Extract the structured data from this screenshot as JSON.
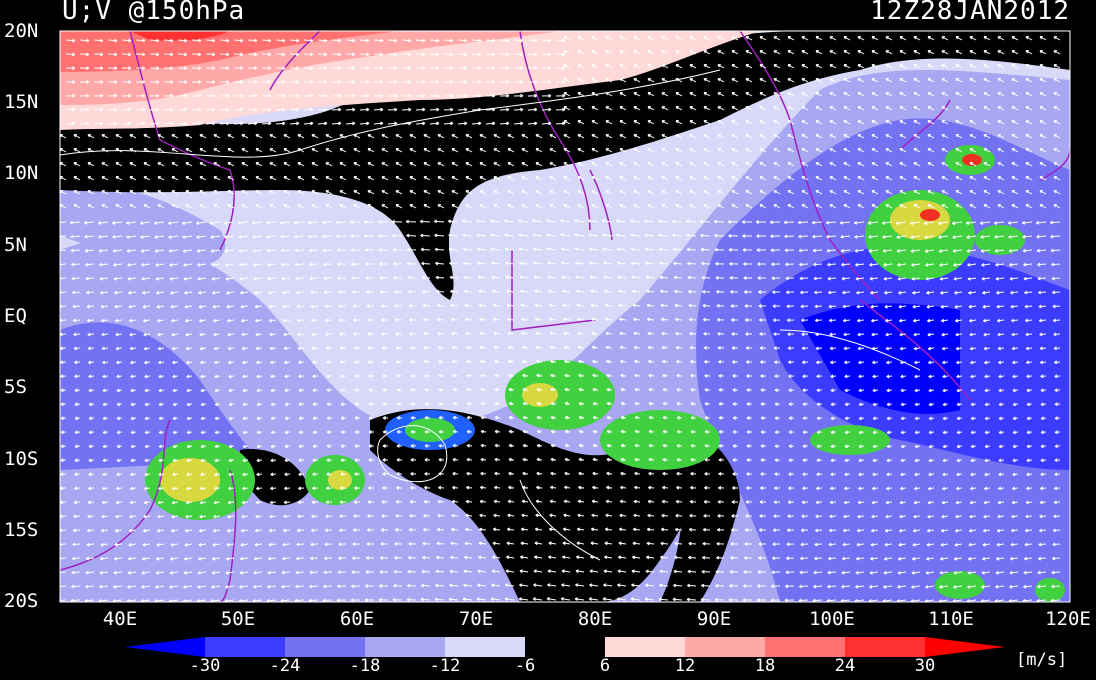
{
  "title_left": "U;V @150hPa",
  "title_right": "12Z28JAN2012",
  "lat_labels": [
    "20N",
    "15N",
    "10N",
    "5N",
    "EQ",
    "5S",
    "10S",
    "15S",
    "20S"
  ],
  "lon_labels": [
    "40E",
    "50E",
    "60E",
    "70E",
    "80E",
    "90E",
    "100E",
    "110E",
    "120E"
  ],
  "colorbar": {
    "levels": [
      "-30",
      "-24",
      "-18",
      "-12",
      "-6",
      "6",
      "12",
      "18",
      "24",
      "30"
    ],
    "colors": [
      "#0000ff",
      "#3c3cff",
      "#7272f2",
      "#a7a7f2",
      "#d8d8f8",
      "#000000",
      "#ffd8d8",
      "#ffa8a8",
      "#ff7070",
      "#ff3030",
      "#ff0000"
    ],
    "units": "[m/s]"
  },
  "palette": {
    "coastline": "#a020c0",
    "vectors": "#ffffff",
    "rain_green": "#40d040",
    "rain_yellow": "#d8d840",
    "rain_red": "#f03020"
  }
}
